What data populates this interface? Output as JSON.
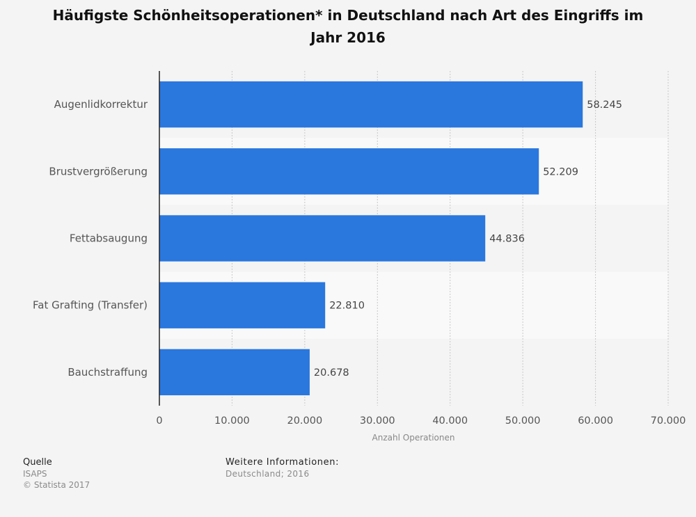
{
  "chart_data": {
    "type": "bar",
    "orientation": "horizontal",
    "title": "Häufigste Schönheitsoperationen* in Deutschland nach Art des Eingriffs im Jahr 2016",
    "categories": [
      "Augenlidkorrektur",
      "Brustvergrößerung",
      "Fettabsaugung",
      "Fat Grafting (Transfer)",
      "Bauchstraffung"
    ],
    "values": [
      58245,
      52209,
      44836,
      22810,
      20678
    ],
    "value_labels": [
      "58.245",
      "52.209",
      "44.836",
      "22.810",
      "20.678"
    ],
    "xlabel": "Anzahl Operationen",
    "ylabel": "",
    "xlim": [
      0,
      70000
    ],
    "ticks": [
      0,
      10000,
      20000,
      30000,
      40000,
      50000,
      60000,
      70000
    ],
    "tick_labels": [
      "0",
      "10.000",
      "20.000",
      "30.000",
      "40.000",
      "50.000",
      "60.000",
      "70.000"
    ],
    "grid": true,
    "bar_color": "#2a77de",
    "band_colors": [
      "#f4f4f4",
      "#f9f9f9"
    ]
  },
  "footer": {
    "source_heading": "Quelle",
    "source_name": "ISAPS",
    "copyright": "© Statista 2017",
    "info_heading": "Weitere Informationen:",
    "info_text": "Deutschland; 2016"
  }
}
